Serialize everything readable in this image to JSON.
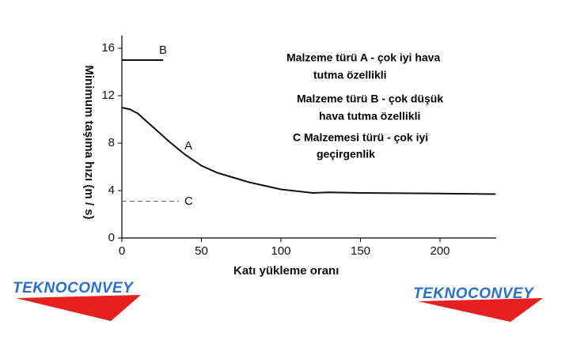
{
  "chart_data": {
    "type": "line",
    "x_label": "Katı yükleme oranı",
    "y_label": "Minimum taşıma hızı (m / s)",
    "xlim": [
      0,
      235
    ],
    "ylim": [
      0,
      17
    ],
    "xticks": [
      0,
      50,
      100,
      150,
      200
    ],
    "yticks": [
      0,
      4,
      8,
      12,
      16
    ],
    "series": [
      {
        "name": "A",
        "color": "#111111",
        "dashed": false,
        "x": [
          0,
          5,
          10,
          15,
          20,
          30,
          40,
          50,
          60,
          80,
          100,
          120,
          130,
          150,
          200,
          235
        ],
        "values": [
          11,
          10.85,
          10.5,
          9.9,
          9.3,
          8.1,
          7,
          6.1,
          5.5,
          4.7,
          4.1,
          3.8,
          3.85,
          3.8,
          3.75,
          3.7
        ]
      },
      {
        "name": "B",
        "color": "#111111",
        "dashed": false,
        "x": [
          0,
          26
        ],
        "values": [
          15,
          15
        ]
      },
      {
        "name": "C",
        "color": "#777777",
        "dashed": true,
        "x": [
          0,
          36
        ],
        "values": [
          3.1,
          3.1
        ]
      }
    ],
    "annotations": [
      [
        "Malzeme türü A - çok iyi hava",
        "tutma özellikli"
      ],
      [
        "Malzeme türü B - çok düşük",
        "hava tutma özellikli"
      ],
      [
        "C Malzemesi türü - çok iyi",
        "geçirgenlik"
      ]
    ]
  },
  "logos": [
    "TEKNOCONVEY",
    "TEKNOCONVEY"
  ]
}
